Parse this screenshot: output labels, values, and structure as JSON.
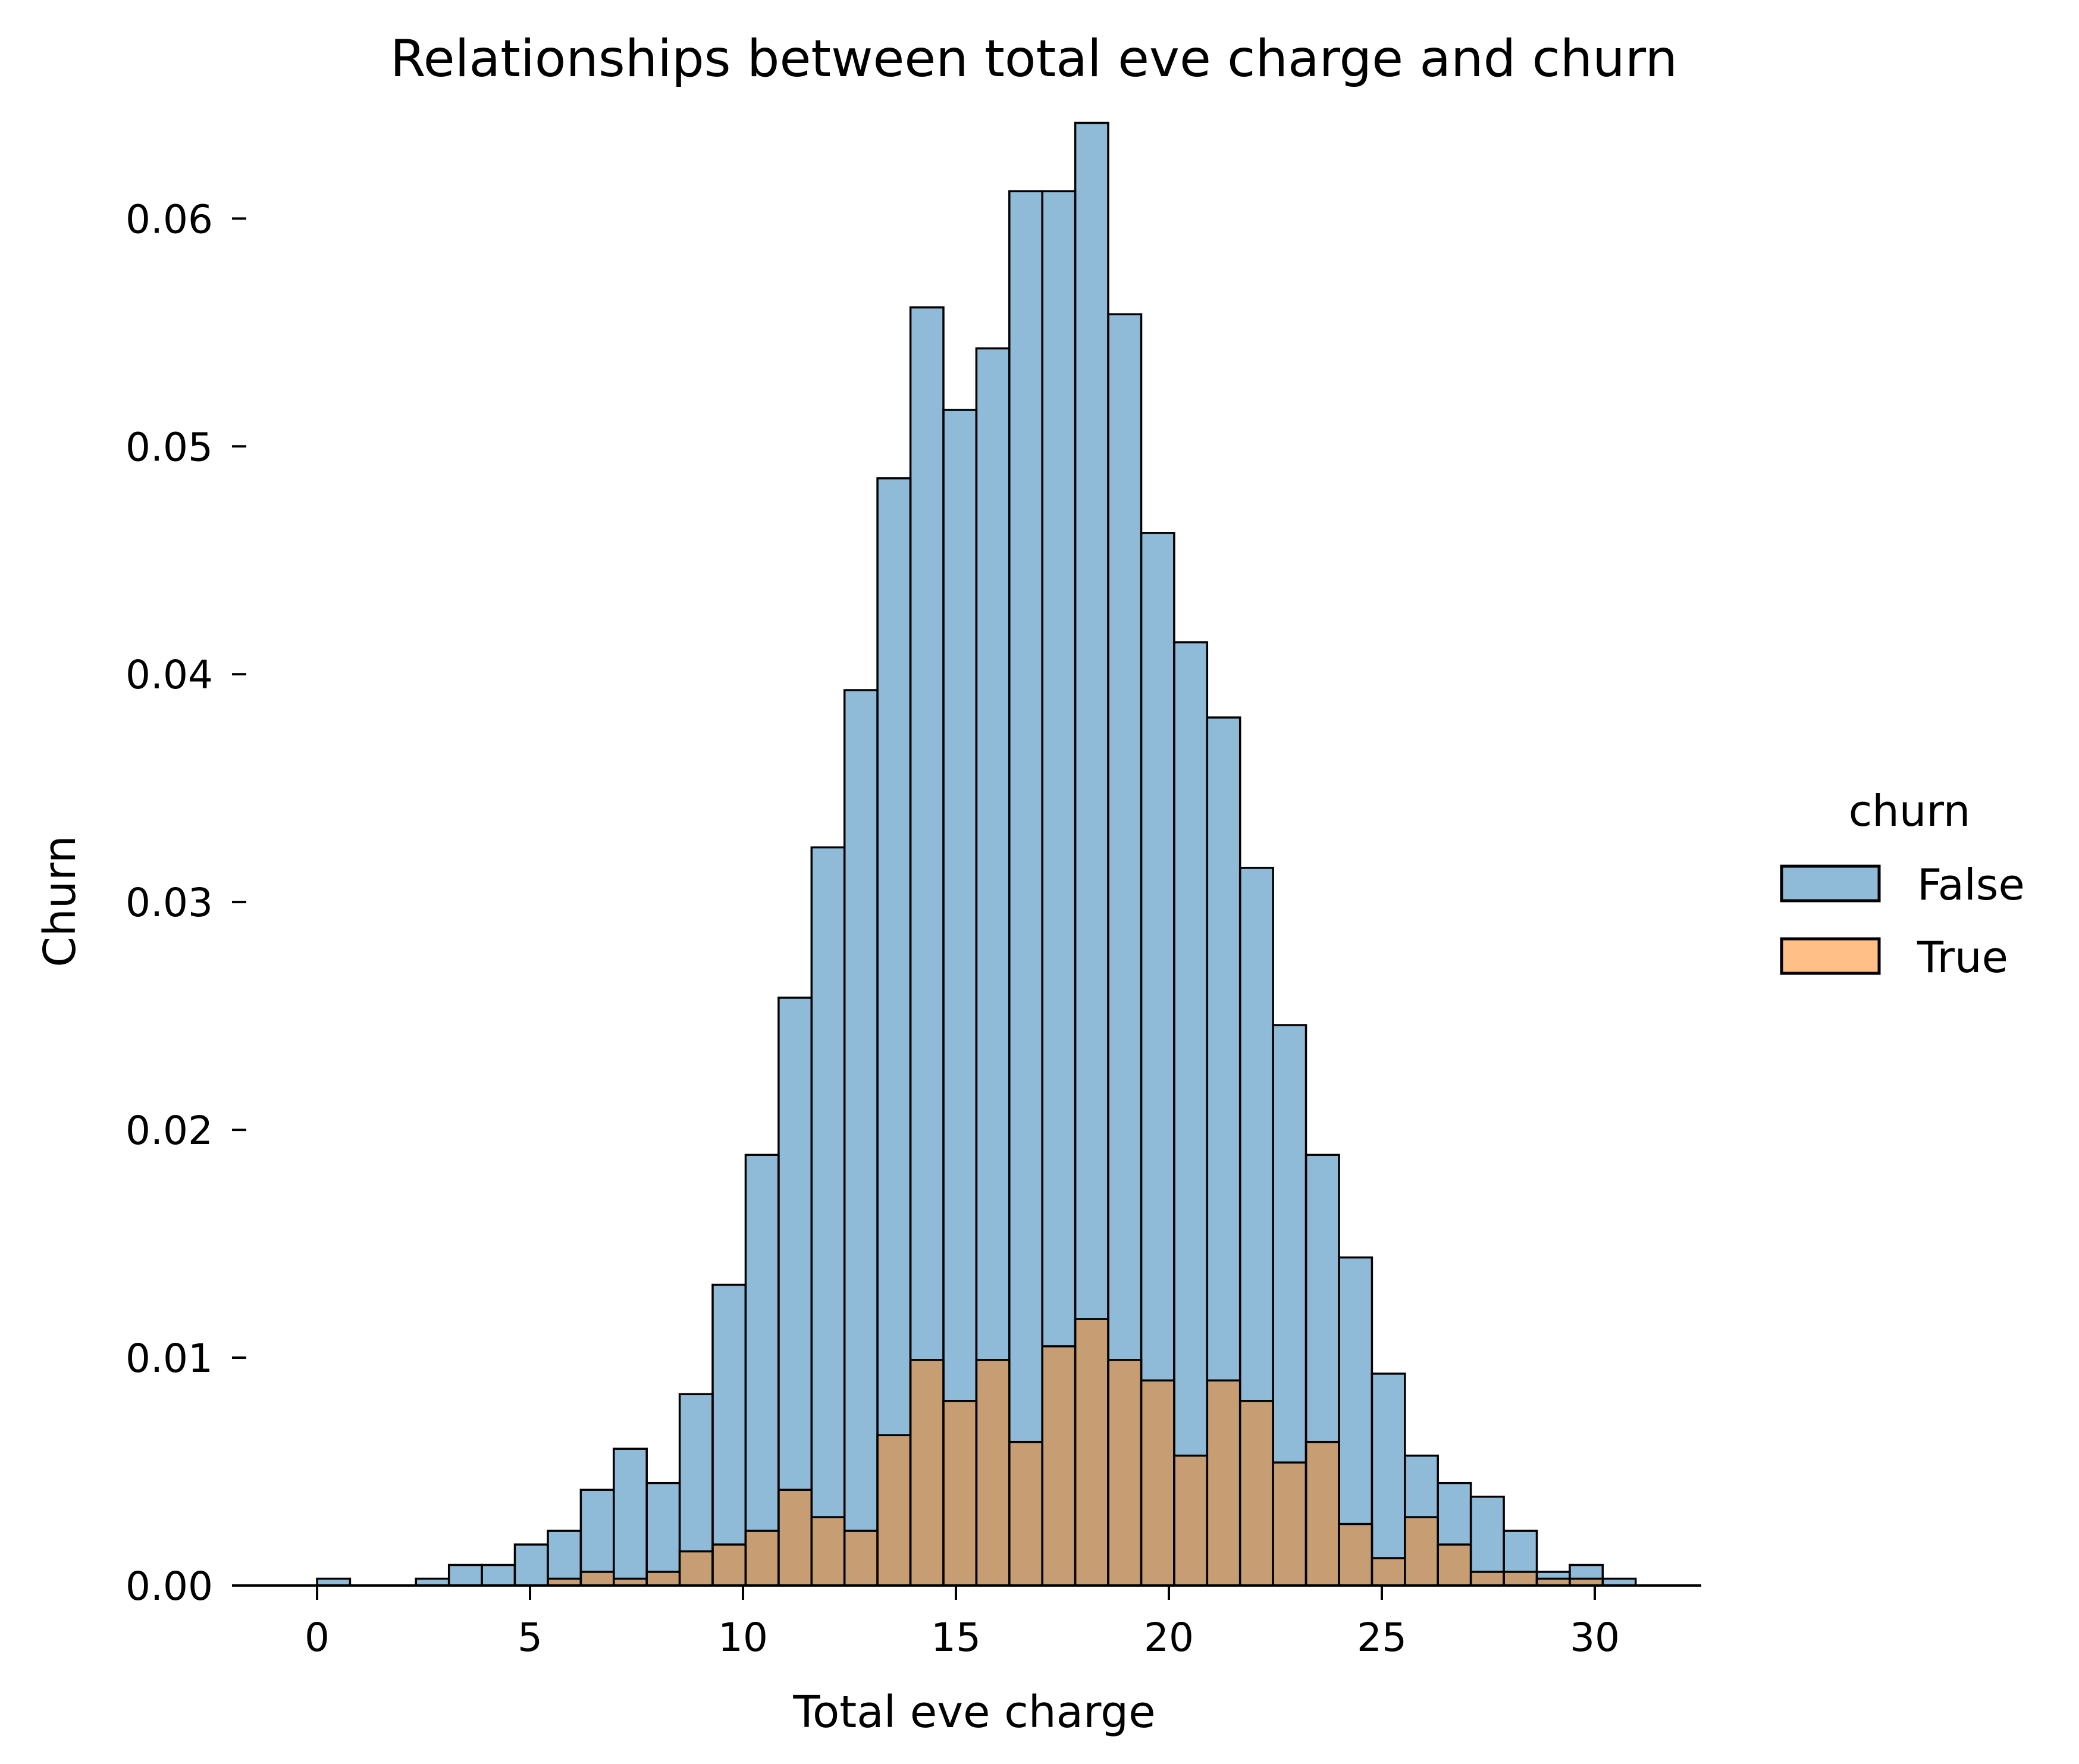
{
  "chart_data": {
    "type": "bar",
    "title": "Relationships between total eve charge and churn",
    "xlabel": "Total eve charge",
    "ylabel": "Churn",
    "xlim": [
      -1.9,
      32.5
    ],
    "ylim": [
      0,
      0.0645
    ],
    "xticks": [
      0,
      5,
      10,
      15,
      20,
      25,
      30
    ],
    "xtick_labels": [
      "0",
      "5",
      "10",
      "15",
      "20",
      "25",
      "30"
    ],
    "yticks": [
      0.0,
      0.01,
      0.02,
      0.03,
      0.04,
      0.05,
      0.06
    ],
    "ytick_labels": [
      "0.00",
      "0.01",
      "0.02",
      "0.03",
      "0.04",
      "0.05",
      "0.06"
    ],
    "bin_start": 0.0,
    "bin_width": 0.774,
    "legend": {
      "title": "churn",
      "placement": "right",
      "entries": [
        "False",
        "True"
      ]
    },
    "colors": {
      "False": "#1f77b4",
      "True": "#ff7f0e",
      "edge": "#000000"
    },
    "series": [
      {
        "name": "False",
        "values": [
          0.0003,
          0,
          0,
          0.0003,
          0.0009,
          0.0009,
          0.0018,
          0.0024,
          0.0042,
          0.006,
          0.0045,
          0.0084,
          0.0132,
          0.0189,
          0.0258,
          0.0324,
          0.0393,
          0.0486,
          0.0561,
          0.0516,
          0.0543,
          0.0612,
          0.0612,
          0.0642,
          0.0558,
          0.0462,
          0.0414,
          0.0381,
          0.0315,
          0.0246,
          0.0189,
          0.0144,
          0.0093,
          0.0057,
          0.0045,
          0.0039,
          0.0024,
          0.0006,
          0.0009,
          0.0003
        ]
      },
      {
        "name": "True",
        "values": [
          0,
          0,
          0,
          0,
          0,
          0,
          0,
          0.0003,
          0.0006,
          0.0003,
          0.0006,
          0.0015,
          0.0018,
          0.0024,
          0.0042,
          0.003,
          0.0024,
          0.0066,
          0.0099,
          0.0081,
          0.0099,
          0.0063,
          0.0105,
          0.0117,
          0.0099,
          0.009,
          0.0057,
          0.009,
          0.0081,
          0.0054,
          0.0063,
          0.0027,
          0.0012,
          0.003,
          0.0018,
          0.0006,
          0.0006,
          0.0003,
          0.0003,
          0
        ]
      }
    ]
  }
}
